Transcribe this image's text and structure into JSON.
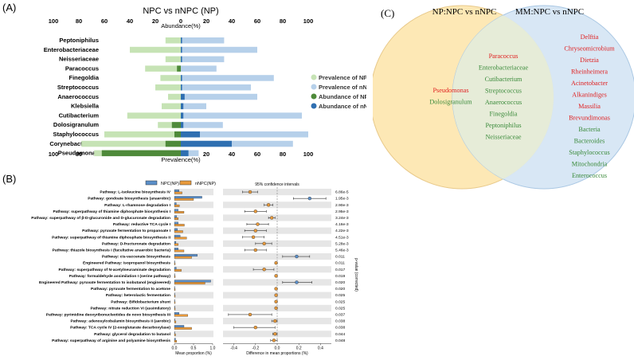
{
  "panel_a": {
    "label": "(A)",
    "title": "NPC vs nNPC (NP)",
    "top_axis_label": "Abundance(%)",
    "bottom_axis_label": "Prevalence(%)",
    "chart_data": {
      "type": "bar",
      "title": "NPC vs nNPC (NP)",
      "categories": [
        "Peptoniphilus",
        "Enterobacteriaceae",
        "Neisseriaceae",
        "Paracoccus",
        "Finegoldia",
        "Streptococcus",
        "Anaerococcus",
        "Klebsiella",
        "Cutibacterium",
        "Dolosigranulum",
        "Staphylococcus",
        "Corynebacterium",
        "Pseudomonas"
      ],
      "axis_ticks": [
        100,
        80,
        60,
        40,
        20,
        0,
        20,
        40,
        60,
        80,
        100
      ],
      "series": [
        {
          "name": "Prevalence of NPC",
          "color": "#c6e3b5",
          "side": "left",
          "values": [
            12,
            40,
            12,
            28,
            16,
            20,
            10,
            15,
            42,
            18,
            60,
            78,
            68
          ]
        },
        {
          "name": "Prevalence of nNPC",
          "color": "#b6d0ea",
          "side": "right",
          "values": [
            34,
            60,
            34,
            28,
            73,
            55,
            60,
            20,
            95,
            33,
            100,
            88,
            14
          ]
        },
        {
          "name": "Abundance of NPC",
          "color": "#4e8a3a",
          "side": "left",
          "values": [
            0,
            0,
            0,
            3,
            0,
            0,
            0,
            0,
            0,
            7,
            5,
            12,
            62
          ]
        },
        {
          "name": "Abundance of nNPC",
          "color": "#2f6fb1",
          "side": "right",
          "values": [
            1,
            1,
            1,
            0,
            1,
            1,
            3,
            2,
            2,
            2,
            15,
            40,
            6
          ]
        }
      ]
    }
  },
  "panel_b": {
    "label": "(B)",
    "legend": [
      "NPC(NP)",
      "nNPC(NP)"
    ],
    "ci_label": "95% confidence intervals",
    "x_label_left": "Mean proportion (%)",
    "x_label_right": "Difference in mean proportions (%)",
    "pvalue_axis_label": "p-value (corrected)",
    "chart_data": {
      "type": "bar",
      "left_xlim": [
        0,
        1.0
      ],
      "left_ticks": [
        "0.0",
        "0.5",
        "1.0"
      ],
      "right_xlim": [
        -0.5,
        0.5
      ],
      "right_ticks": [
        "-0.4",
        "-0.2",
        "0.0",
        "0.2",
        "0.4"
      ],
      "rows": [
        {
          "pathway": "Pathway: L-isoleucine biosynthesis IV",
          "npc": 0.12,
          "nnpc": 0.2,
          "diff": -0.25,
          "lo": -0.32,
          "hi": -0.18,
          "p": "6.86e-5",
          "color": "#e89a3c"
        },
        {
          "pathway": "Pathway: gondoate biosynthesis (anaerobic)",
          "npc": 0.72,
          "nnpc": 0.5,
          "diff": 0.3,
          "lo": 0.15,
          "hi": 0.45,
          "p": "1.95e-3",
          "color": "#5b8fc9"
        },
        {
          "pathway": "Pathway: L-rhamnose degradation I",
          "npc": 0.05,
          "nnpc": 0.13,
          "diff": -0.08,
          "lo": -0.12,
          "hi": -0.04,
          "p": "2.90e-3",
          "color": "#e89a3c"
        },
        {
          "pathway": "Pathway: superpathway of thiamine diphosphate biosynthesis I",
          "npc": 0.1,
          "nnpc": 0.25,
          "diff": -0.2,
          "lo": -0.3,
          "hi": -0.1,
          "p": "2.95e-3",
          "color": "#e89a3c"
        },
        {
          "pathway": "Pathway: superpathway of β-D-glucuronide and D-glucuronate degradation",
          "npc": 0.06,
          "nnpc": 0.1,
          "diff": -0.05,
          "lo": -0.08,
          "hi": -0.02,
          "p": "3.24e-3",
          "color": "#e89a3c"
        },
        {
          "pathway": "Pathway: reductive TCA cycle I",
          "npc": 0.1,
          "nnpc": 0.26,
          "diff": -0.18,
          "lo": -0.28,
          "hi": -0.08,
          "p": "4.16e-3",
          "color": "#e89a3c"
        },
        {
          "pathway": "Pathway: pyruvate fermentation to propanoate I",
          "npc": 0.08,
          "nnpc": 0.22,
          "diff": -0.2,
          "lo": -0.3,
          "hi": -0.1,
          "p": "4.22e-3",
          "color": "#e89a3c"
        },
        {
          "pathway": "Pathway: superpathway of thiamine diphosphate biosynthesis II",
          "npc": 0.15,
          "nnpc": 0.32,
          "diff": -0.22,
          "lo": -0.32,
          "hi": -0.12,
          "p": "4.51e-3",
          "color": "#e89a3c"
        },
        {
          "pathway": "Pathway: D-fructuronate degradation",
          "npc": 0.04,
          "nnpc": 0.1,
          "diff": -0.12,
          "lo": -0.2,
          "hi": -0.05,
          "p": "5.28e-3",
          "color": "#e89a3c"
        },
        {
          "pathway": "Pathway: thiazole biosynthesis I (facultative anaerobic bacteria)",
          "npc": 0.1,
          "nnpc": 0.25,
          "diff": -0.2,
          "lo": -0.3,
          "hi": -0.1,
          "p": "5.46e-3",
          "color": "#e89a3c"
        },
        {
          "pathway": "Pathway: cis-vaccenate biosynthesis",
          "npc": 0.6,
          "nnpc": 0.45,
          "diff": 0.18,
          "lo": 0.05,
          "hi": 0.3,
          "p": "0.011",
          "color": "#5b8fc9"
        },
        {
          "pathway": "Engineered Pathway: isopropanol biosynthesis",
          "npc": 0.01,
          "nnpc": 0.02,
          "diff": -0.01,
          "lo": -0.02,
          "hi": 0.0,
          "p": "0.011",
          "color": "#e89a3c"
        },
        {
          "pathway": "Pathway: superpathway of N-acetylneuraminate degradation",
          "npc": 0.05,
          "nnpc": 0.18,
          "diff": -0.12,
          "lo": -0.22,
          "hi": -0.03,
          "p": "0.017",
          "color": "#e89a3c"
        },
        {
          "pathway": "Pathway: formaldehyde assimilation I (serine pathway)",
          "npc": 0.01,
          "nnpc": 0.02,
          "diff": -0.01,
          "lo": -0.02,
          "hi": 0.0,
          "p": "0.019",
          "color": "#e89a3c"
        },
        {
          "pathway": "Engineered Pathway: pyruvate fermentation to isobutanol (engineered)",
          "npc": 0.95,
          "nnpc": 0.8,
          "diff": 0.18,
          "lo": 0.05,
          "hi": 0.32,
          "p": "0.020",
          "color": "#5b8fc9"
        },
        {
          "pathway": "Pathway: pyruvate fermentation to acetone",
          "npc": 0.01,
          "nnpc": 0.02,
          "diff": -0.01,
          "lo": -0.02,
          "hi": 0.0,
          "p": "0.020",
          "color": "#e89a3c"
        },
        {
          "pathway": "Pathway: heterolactic fermentation",
          "npc": 0.01,
          "nnpc": 0.02,
          "diff": -0.01,
          "lo": -0.02,
          "hi": 0.0,
          "p": "0.025",
          "color": "#e89a3c"
        },
        {
          "pathway": "Pathway: Bifidobacterium shunt",
          "npc": 0.01,
          "nnpc": 0.02,
          "diff": -0.01,
          "lo": -0.02,
          "hi": 0.0,
          "p": "0.025",
          "color": "#e89a3c"
        },
        {
          "pathway": "Pathway: nitrate reduction VI (assimilatory)",
          "npc": 0.01,
          "nnpc": 0.02,
          "diff": -0.01,
          "lo": -0.02,
          "hi": 0.0,
          "p": "0.025",
          "color": "#e89a3c"
        },
        {
          "pathway": "Pathway: pyrimidine deoxyribonucleotides de novo biosynthesis III",
          "npc": 0.12,
          "nnpc": 0.35,
          "diff": -0.25,
          "lo": -0.45,
          "hi": -0.05,
          "p": "0.037",
          "color": "#e89a3c"
        },
        {
          "pathway": "Pathway: adenosylcobalamin biosynthesis II (aerobic)",
          "npc": 0.01,
          "nnpc": 0.04,
          "diff": -0.02,
          "lo": -0.05,
          "hi": 0.0,
          "p": "0.038",
          "color": "#e89a3c"
        },
        {
          "pathway": "Pathway: TCA cycle IV (2-oxoglutarate decarboxylase)",
          "npc": 0.25,
          "nnpc": 0.45,
          "diff": -0.2,
          "lo": -0.4,
          "hi": -0.02,
          "p": "0.038",
          "color": "#e89a3c"
        },
        {
          "pathway": "Pathway: glycerol degradation to butanol",
          "npc": 0.01,
          "nnpc": 0.03,
          "diff": -0.02,
          "lo": -0.04,
          "hi": 0.0,
          "p": "0.044",
          "color": "#e89a3c"
        },
        {
          "pathway": "Pathway: superpathway of arginine and polyamine biosynthesis",
          "npc": 0.03,
          "nnpc": 0.06,
          "diff": -0.03,
          "lo": -0.06,
          "hi": 0.0,
          "p": "0.048",
          "color": "#e89a3c"
        }
      ]
    }
  },
  "panel_c": {
    "label": "(C)",
    "left_title": "NP:NPC vs nNPC",
    "right_title": "MM:NPC vs nNPC",
    "left_only": [
      {
        "text": "Pseudomonas",
        "color": "#e02020"
      },
      {
        "text": "Dolosigranulum",
        "color": "#3a8a3a"
      }
    ],
    "intersection": [
      {
        "text": "Paracoccus",
        "color": "#e02020"
      },
      {
        "text": "Enterobacteriaceae",
        "color": "#3a8a3a"
      },
      {
        "text": "Cutibacterium",
        "color": "#3a8a3a"
      },
      {
        "text": "Streptococcus",
        "color": "#3a8a3a"
      },
      {
        "text": "Anaerococcus",
        "color": "#3a8a3a"
      },
      {
        "text": "Finegoldia",
        "color": "#3a8a3a"
      },
      {
        "text": "Peptoniphilus",
        "color": "#3a8a3a"
      },
      {
        "text": "Neisseriaceae",
        "color": "#3a8a3a"
      }
    ],
    "right_only": [
      {
        "text": "Delftia",
        "color": "#e02020"
      },
      {
        "text": "Chryseomicrobium",
        "color": "#e02020"
      },
      {
        "text": "Dietzia",
        "color": "#e02020"
      },
      {
        "text": "Rheinheimera",
        "color": "#e02020"
      },
      {
        "text": "Acinetobacter",
        "color": "#e02020"
      },
      {
        "text": "Alkanindiges",
        "color": "#e02020"
      },
      {
        "text": "Massilia",
        "color": "#e02020"
      },
      {
        "text": "Brevundimonas",
        "color": "#e02020"
      },
      {
        "text": "Bacteria",
        "color": "#3a8a3a"
      },
      {
        "text": "Bacteroides",
        "color": "#3a8a3a"
      },
      {
        "text": "Staphylococcus",
        "color": "#3a8a3a"
      },
      {
        "text": "Mitochondria",
        "color": "#3a8a3a"
      },
      {
        "text": "Enterococcus",
        "color": "#3a8a3a"
      }
    ],
    "colors": {
      "left_fill": "#fde8b5",
      "right_fill": "#d6e6f4",
      "overlap_fill": "#e6ecd8"
    }
  }
}
